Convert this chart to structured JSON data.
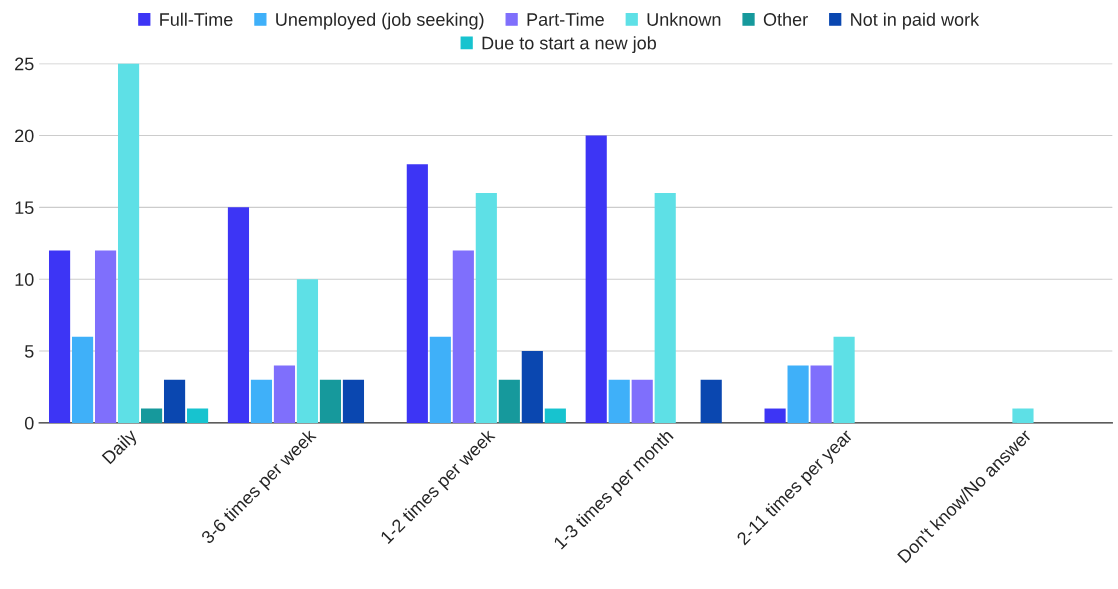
{
  "chart_data": {
    "type": "bar",
    "categories": [
      "Daily",
      "3-6 times per week",
      "1-2 times per week",
      "1-3 times per month",
      "2-11 times per year",
      "Don't know/No answer"
    ],
    "series": [
      {
        "name": "Full-Time",
        "color": "#3d35f5",
        "values": [
          12,
          15,
          18,
          20,
          1,
          null
        ]
      },
      {
        "name": "Unemployed (job seeking)",
        "color": "#3fb0f9",
        "values": [
          6,
          3,
          6,
          3,
          4,
          null
        ]
      },
      {
        "name": "Part-Time",
        "color": "#7f6ffc",
        "values": [
          12,
          4,
          12,
          3,
          4,
          null
        ]
      },
      {
        "name": "Unknown",
        "color": "#5ee0e6",
        "values": [
          25,
          10,
          16,
          16,
          6,
          1
        ]
      },
      {
        "name": "Other",
        "color": "#16999c",
        "values": [
          1,
          3,
          3,
          null,
          null,
          null
        ]
      },
      {
        "name": "Not in paid work",
        "color": "#0a47b0",
        "values": [
          3,
          3,
          5,
          3,
          null,
          null
        ]
      },
      {
        "name": "Due to start a new job",
        "color": "#17c3cf",
        "values": [
          1,
          null,
          1,
          null,
          null,
          null
        ]
      }
    ],
    "ylim": [
      0,
      25
    ],
    "yticks": [
      0,
      5,
      10,
      15,
      20,
      25
    ],
    "grid": "y",
    "legend": "top"
  }
}
